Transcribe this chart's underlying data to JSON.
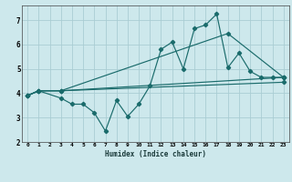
{
  "xlabel": "Humidex (Indice chaleur)",
  "bg_color": "#cde8ec",
  "grid_color": "#aacdd3",
  "line_color": "#1a6b6b",
  "xlim": [
    -0.5,
    23.5
  ],
  "ylim": [
    2,
    7.6
  ],
  "xticks": [
    0,
    1,
    2,
    3,
    4,
    5,
    6,
    7,
    8,
    9,
    10,
    11,
    12,
    13,
    14,
    15,
    16,
    17,
    18,
    19,
    20,
    21,
    22,
    23
  ],
  "yticks": [
    2,
    3,
    4,
    5,
    6,
    7
  ],
  "lines": [
    {
      "x": [
        0,
        1,
        3,
        4,
        5,
        6,
        7,
        8,
        9,
        10,
        11,
        12,
        13,
        14,
        15,
        16,
        17,
        18,
        19,
        20,
        21,
        22,
        23
      ],
      "y": [
        3.9,
        4.1,
        3.8,
        3.55,
        3.55,
        3.2,
        2.45,
        3.7,
        3.05,
        3.55,
        4.3,
        5.8,
        6.1,
        5.0,
        6.65,
        6.8,
        7.25,
        5.05,
        5.65,
        4.9,
        4.65,
        4.65,
        4.65
      ]
    },
    {
      "x": [
        0,
        1,
        3,
        23
      ],
      "y": [
        3.9,
        4.1,
        4.1,
        4.65
      ]
    },
    {
      "x": [
        0,
        1,
        3,
        18,
        23
      ],
      "y": [
        3.9,
        4.1,
        4.1,
        6.45,
        4.65
      ]
    },
    {
      "x": [
        0,
        1,
        3,
        23
      ],
      "y": [
        3.9,
        4.1,
        4.1,
        4.45
      ]
    }
  ]
}
